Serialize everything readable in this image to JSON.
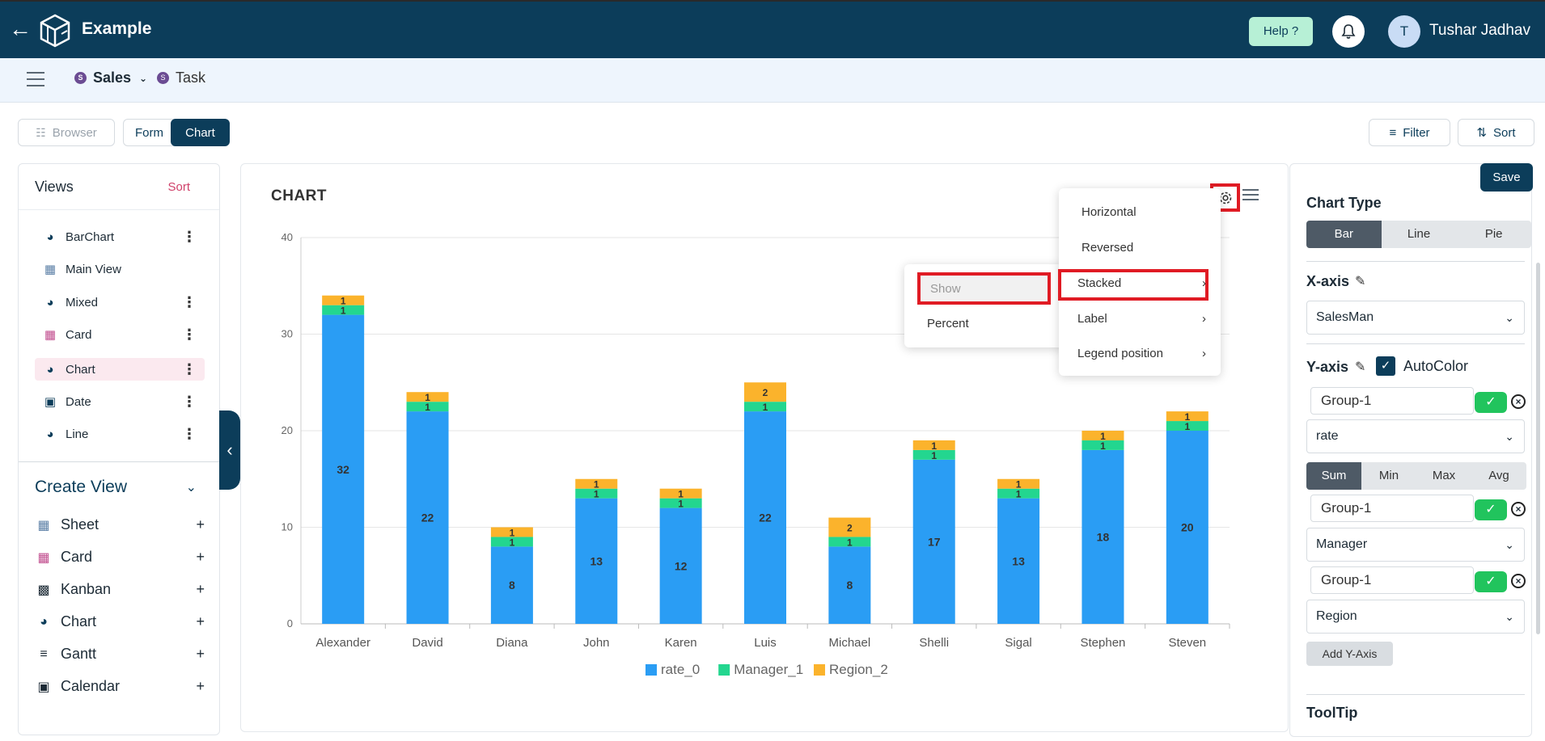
{
  "app": {
    "title": "Example",
    "help_label": "Help ?",
    "user_initial": "T",
    "user_name": "Tushar Jadhav"
  },
  "tabs": [
    {
      "badge": "S",
      "label": "Sales",
      "active": true
    },
    {
      "badge": "S",
      "label": "Task",
      "active": false
    }
  ],
  "toolbar": {
    "browser_label": "Browser",
    "form_label": "Form",
    "chart_label": "Chart",
    "filter_label": "Filter",
    "sort_label": "Sort"
  },
  "views": {
    "title": "Views",
    "sort_label": "Sort",
    "items": [
      {
        "label": "BarChart",
        "icon": "pie-icon",
        "has_menu": true
      },
      {
        "label": "Main View",
        "icon": "grid-icon",
        "has_menu": false
      },
      {
        "label": "Mixed",
        "icon": "pie-icon",
        "has_menu": true
      },
      {
        "label": "Card",
        "icon": "card-icon",
        "has_menu": true
      },
      {
        "label": "Chart",
        "icon": "pie-icon",
        "has_menu": true,
        "active": true
      },
      {
        "label": "Date",
        "icon": "calendar-icon",
        "has_menu": true
      },
      {
        "label": "Line",
        "icon": "pie-icon",
        "has_menu": true
      }
    ]
  },
  "create_view": {
    "title": "Create View",
    "items": [
      {
        "label": "Sheet",
        "icon": "grid-icon"
      },
      {
        "label": "Card",
        "icon": "card-icon"
      },
      {
        "label": "Kanban",
        "icon": "kanban-icon"
      },
      {
        "label": "Chart",
        "icon": "pie-icon"
      },
      {
        "label": "Gantt",
        "icon": "gantt-icon"
      },
      {
        "label": "Calendar",
        "icon": "calendar-icon"
      }
    ]
  },
  "chart_heading": "CHART",
  "settings_menu": {
    "items": [
      {
        "label": "Horizontal",
        "has_submenu": false
      },
      {
        "label": "Reversed",
        "has_submenu": false
      },
      {
        "label": "Stacked",
        "has_submenu": true
      },
      {
        "label": "Label",
        "has_submenu": true
      },
      {
        "label": "Legend position",
        "has_submenu": true
      }
    ],
    "submenu": {
      "show_label": "Show",
      "percent_label": "Percent"
    }
  },
  "chart_data": {
    "type": "bar",
    "stacked": true,
    "categories": [
      "Alexander",
      "David",
      "Diana",
      "John",
      "Karen",
      "Luis",
      "Michael",
      "Shelli",
      "Sigal",
      "Stephen",
      "Steven"
    ],
    "series": [
      {
        "name": "rate_0",
        "color": "#2a9df4",
        "values": [
          32,
          22,
          8,
          13,
          12,
          22,
          8,
          17,
          13,
          18,
          20
        ]
      },
      {
        "name": "Manager_1",
        "color": "#23d68f",
        "values": [
          1,
          1,
          1,
          1,
          1,
          1,
          1,
          1,
          1,
          1,
          1
        ]
      },
      {
        "name": "Region_2",
        "color": "#fbb32c",
        "values": [
          1,
          1,
          1,
          1,
          1,
          2,
          2,
          1,
          1,
          1,
          1
        ]
      }
    ],
    "ylim": [
      0,
      40
    ],
    "yticks": [
      0,
      10,
      20,
      30,
      40
    ],
    "grid": true,
    "legend": "bottom"
  },
  "right_panel": {
    "save_label": "Save",
    "chart_type_title": "Chart Type",
    "chart_types": [
      "Bar",
      "Line",
      "Pie"
    ],
    "chart_type_selected": "Bar",
    "x_axis_title": "X-axis",
    "x_axis_value": "SalesMan",
    "y_axis_title": "Y-axis",
    "autocolor_label": "AutoColor",
    "group1_a": "Group-1",
    "y_field_1": "rate",
    "aggregations": [
      "Sum",
      "Min",
      "Max",
      "Avg"
    ],
    "aggregation_selected": "Sum",
    "group1_b": "Group-1",
    "y_field_2": "Manager",
    "group1_c": "Group-1",
    "y_field_3": "Region",
    "add_y_label": "Add Y-Axis",
    "tooltip_title": "ToolTip"
  }
}
